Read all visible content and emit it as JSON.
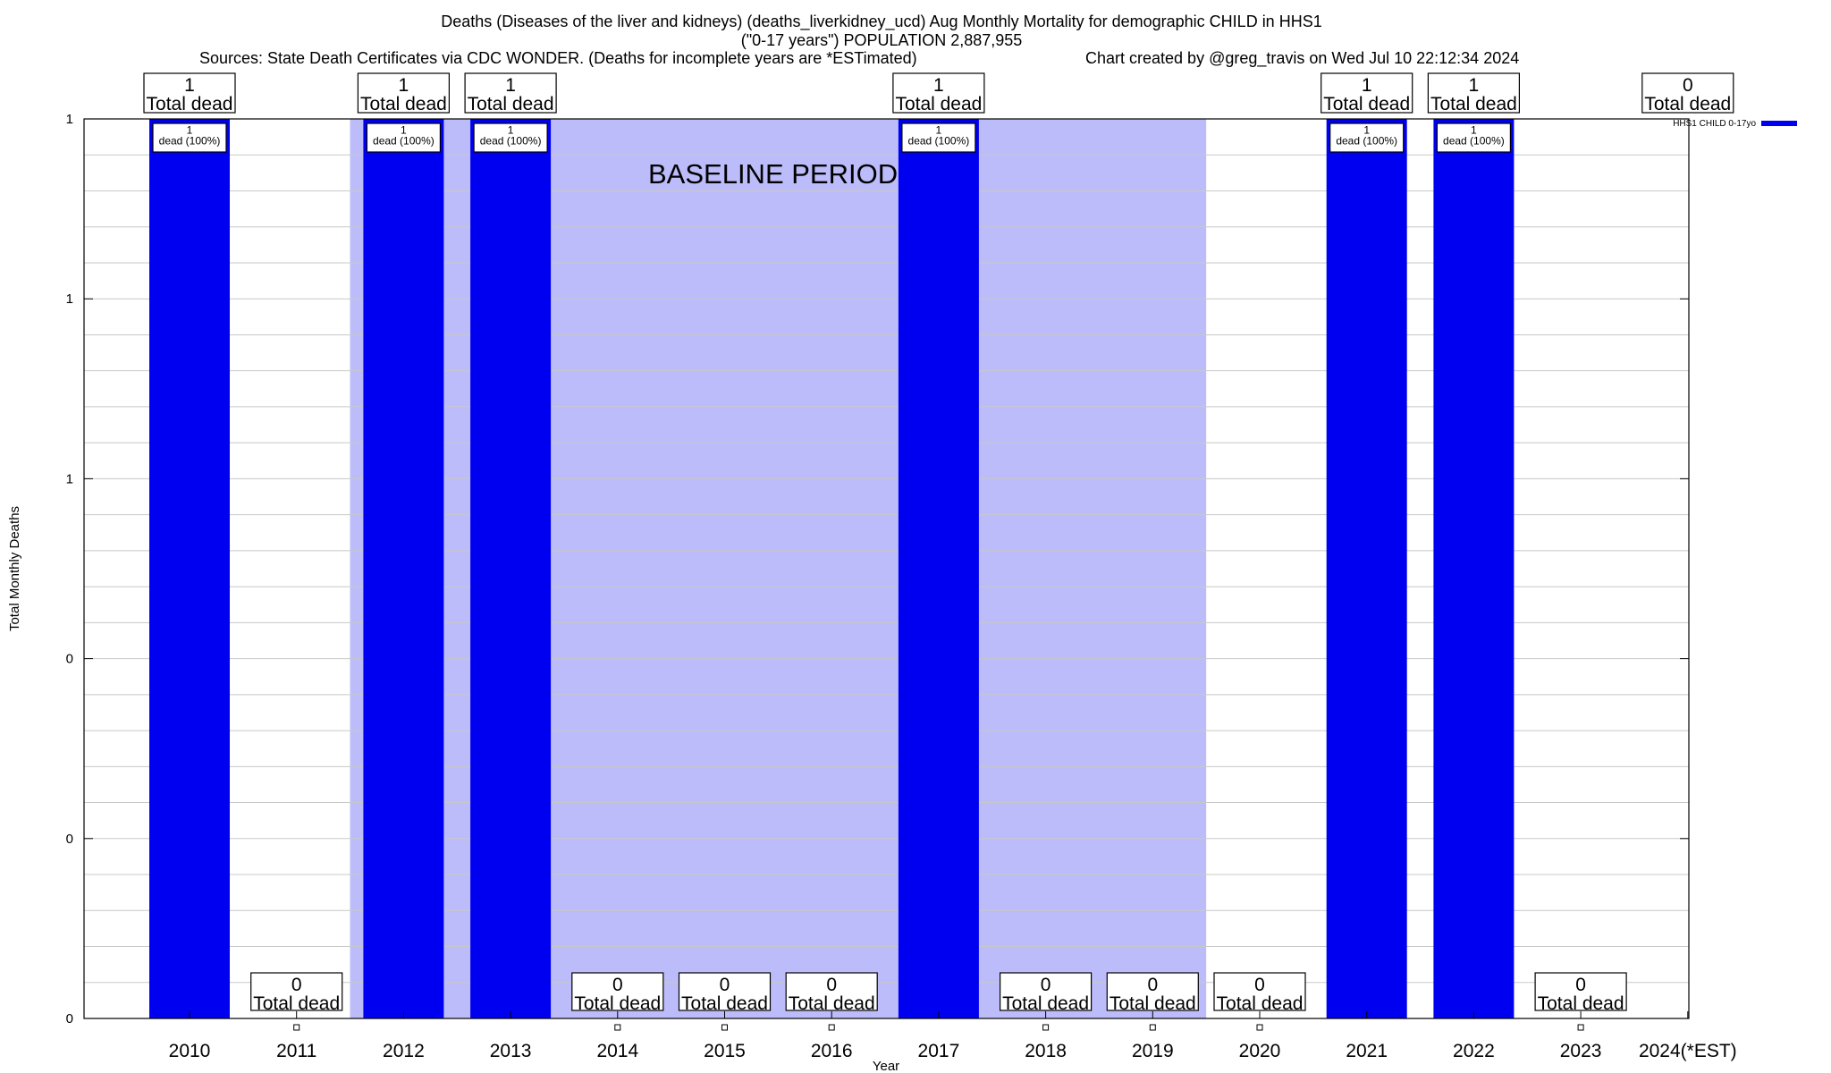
{
  "header": {
    "title_line1": "Deaths (Diseases of the liver and kidneys) (deaths_liverkidney_ucd) Aug Monthly Mortality for demographic CHILD in HHS1",
    "title_line2": "(\"0-17 years\") POPULATION 2,887,955",
    "sources": "Sources: State Death Certificates via CDC WONDER. (Deaths for incomplete years are *ESTimated)",
    "credit": "Chart created by @greg_travis on Wed Jul 10 22:12:34 2024"
  },
  "colors": {
    "bar": "#0000f0",
    "baseline_band": "#bcbcfa"
  },
  "chart_data": {
    "type": "bar",
    "xlabel": "Year",
    "ylabel": "Total Monthly Deaths",
    "categories": [
      "2010",
      "2011",
      "2012",
      "2013",
      "2014",
      "2015",
      "2016",
      "2017",
      "2018",
      "2019",
      "2020",
      "2021",
      "2022",
      "2023",
      "2024(*EST)"
    ],
    "series": [
      {
        "name": "HHS1 CHILD 0-17yo",
        "values": [
          1,
          0,
          1,
          1,
          0,
          0,
          0,
          1,
          0,
          0,
          0,
          1,
          1,
          0,
          0
        ]
      }
    ],
    "top_labels": [
      "1\nTotal dead",
      "0\nTotal dead",
      "1\nTotal dead",
      "1\nTotal dead",
      "0\nTotal dead",
      "0\nTotal dead",
      "0\nTotal dead",
      "1\nTotal dead",
      "0\nTotal dead",
      "0\nTotal dead",
      "0\nTotal dead",
      "1\nTotal dead",
      "1\nTotal dead",
      "0\nTotal dead",
      "0\nTotal dead"
    ],
    "inner_labels": [
      "1\ndead (100%)",
      "",
      "1\ndead (100%)",
      "1\ndead (100%)",
      "",
      "",
      "",
      "1\ndead (100%)",
      "",
      "",
      "",
      "1\ndead (100%)",
      "1\ndead (100%)",
      "",
      ""
    ],
    "ylim": [
      0,
      1
    ],
    "y_tick_labels": [
      "0",
      "0",
      "0",
      "1",
      "1",
      "1"
    ],
    "baseline_band": {
      "from": "2012",
      "to": "2019",
      "label": "BASELINE PERIOD"
    },
    "legend": "top-right",
    "grid": true
  }
}
